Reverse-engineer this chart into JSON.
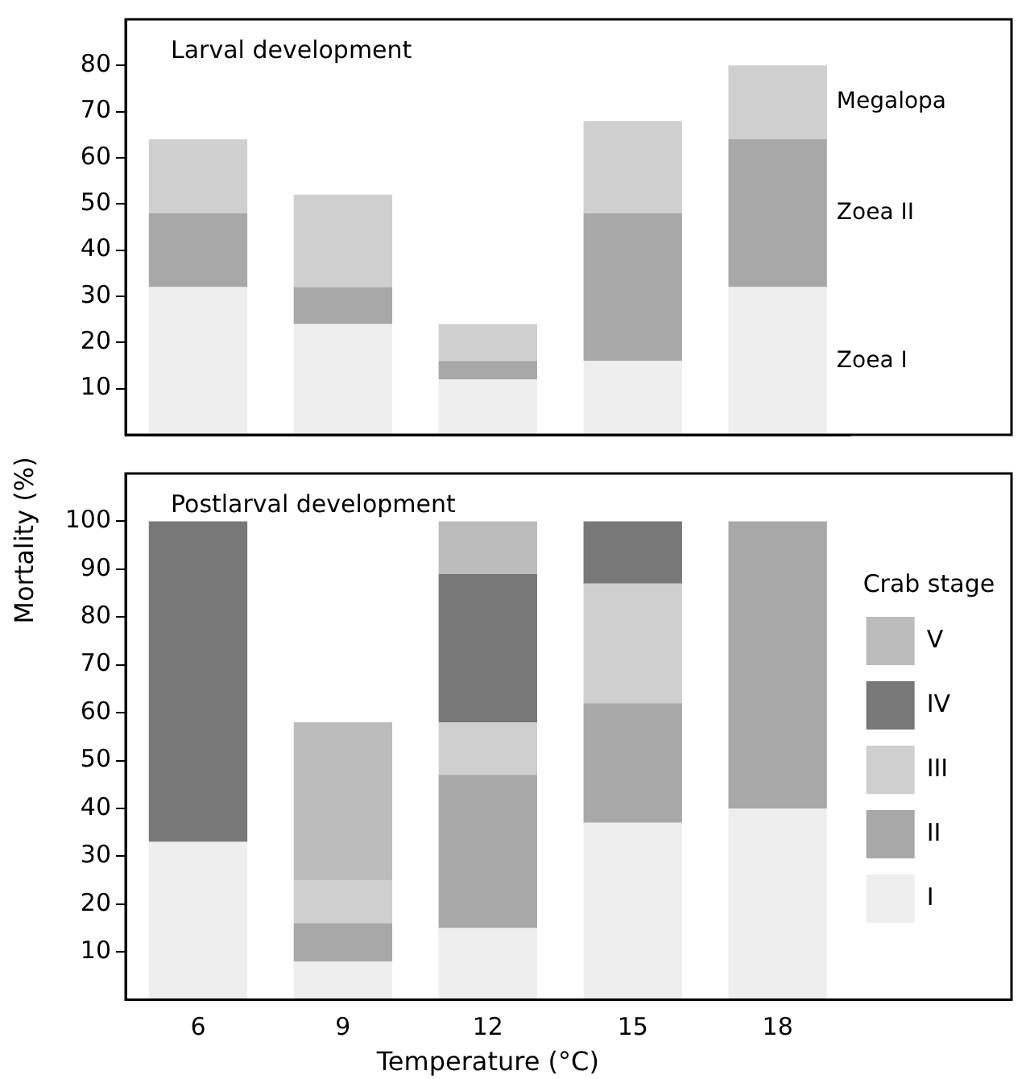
{
  "chart_data": [
    {
      "type": "bar",
      "title": "Larval development",
      "stacked": true,
      "categories": [
        "6",
        "9",
        "12",
        "15",
        "18"
      ],
      "series": [
        {
          "name": "Zoea I",
          "color": "#eeeeee",
          "values": [
            32,
            24,
            12,
            16,
            32
          ]
        },
        {
          "name": "Zoea II",
          "color": "#a8a8a8",
          "values": [
            16,
            8,
            4,
            32,
            32
          ]
        },
        {
          "name": "Megalopa",
          "color": "#cfcfcf",
          "values": [
            16,
            20,
            8,
            20,
            16
          ]
        }
      ],
      "ylim": [
        0,
        90
      ],
      "yticks": [
        10,
        20,
        30,
        40,
        50,
        60,
        70,
        80
      ],
      "grid": false,
      "legend": false,
      "tick_labels": "y"
    },
    {
      "type": "bar",
      "title": "Postlarval development",
      "stacked": true,
      "categories": [
        "6",
        "9",
        "12",
        "15",
        "18"
      ],
      "series": [
        {
          "name": "I",
          "color": "#eeeeee",
          "values": [
            33,
            8,
            15,
            37,
            40
          ]
        },
        {
          "name": "II",
          "color": "#a8a8a8",
          "values": [
            0,
            8,
            32,
            25,
            60
          ]
        },
        {
          "name": "III",
          "color": "#cfcfcf",
          "values": [
            0,
            9,
            11,
            25,
            0
          ]
        },
        {
          "name": "IV",
          "color": "#787878",
          "values": [
            67,
            0,
            31,
            13,
            0
          ]
        },
        {
          "name": "V",
          "color": "#bcbcbc",
          "values": [
            0,
            33,
            11,
            0,
            0
          ]
        }
      ],
      "xlabel": "Temperature (°C)",
      "ylabel": "Mortality (%)",
      "legend_title": "Crab stage",
      "legend": "right",
      "ylim": [
        0,
        110
      ],
      "yticks": [
        10,
        20,
        30,
        40,
        50,
        60,
        70,
        80,
        90,
        100
      ],
      "grid": false
    }
  ]
}
